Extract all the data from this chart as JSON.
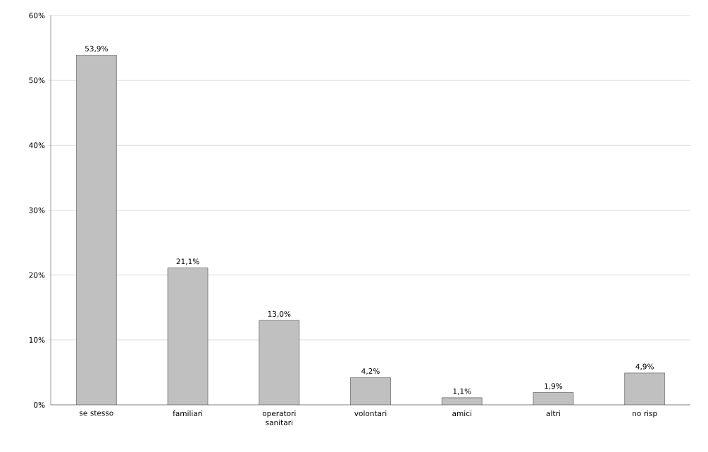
{
  "chart_data": {
    "type": "bar",
    "categories": [
      "se stesso",
      "familiari",
      "operatori sanitari",
      "volontari",
      "amici",
      "altri",
      "no risp"
    ],
    "values": [
      53.9,
      21.1,
      13.0,
      4.2,
      1.1,
      1.9,
      4.9
    ],
    "value_labels": [
      "53,9%",
      "21,1%",
      "13,0%",
      "4,2%",
      "1,1%",
      "1,9%",
      "4,9%"
    ],
    "color": "#c0c0c0",
    "ylim": [
      0,
      60
    ],
    "yticks": [
      {
        "value": 0,
        "label": "0%"
      },
      {
        "value": 10,
        "label": "10%"
      },
      {
        "value": 20,
        "label": "20%"
      },
      {
        "value": 30,
        "label": "30%"
      },
      {
        "value": 40,
        "label": "40%"
      },
      {
        "value": 50,
        "label": "50%"
      },
      {
        "value": 60,
        "label": "60%"
      }
    ],
    "grid": "y"
  }
}
